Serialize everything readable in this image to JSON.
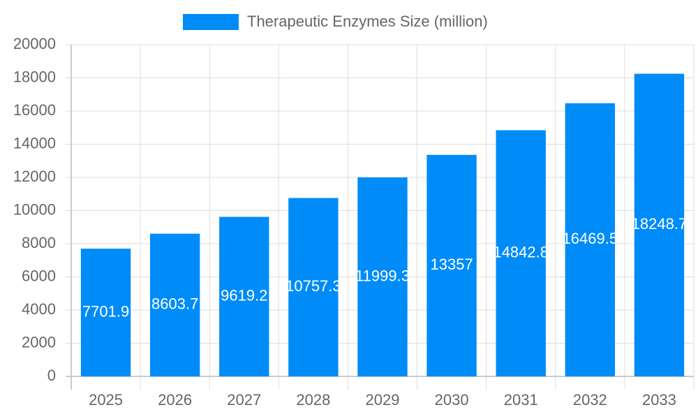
{
  "chart_data": {
    "type": "bar",
    "categories": [
      "2025",
      "2026",
      "2027",
      "2028",
      "2029",
      "2030",
      "2031",
      "2032",
      "2033"
    ],
    "series": [
      {
        "name": "Therapeutic Enzymes Size (million)",
        "color": "#008cf8",
        "values": [
          7701.9,
          8603.7,
          9619.2,
          10757.3,
          11999.3,
          13357,
          14842.8,
          16469.5,
          18248.7
        ]
      }
    ],
    "ylim": [
      0,
      20000
    ],
    "yticks": [
      0,
      2000,
      4000,
      6000,
      8000,
      10000,
      12000,
      14000,
      16000,
      18000,
      20000
    ],
    "grid": true,
    "legend": "top"
  }
}
